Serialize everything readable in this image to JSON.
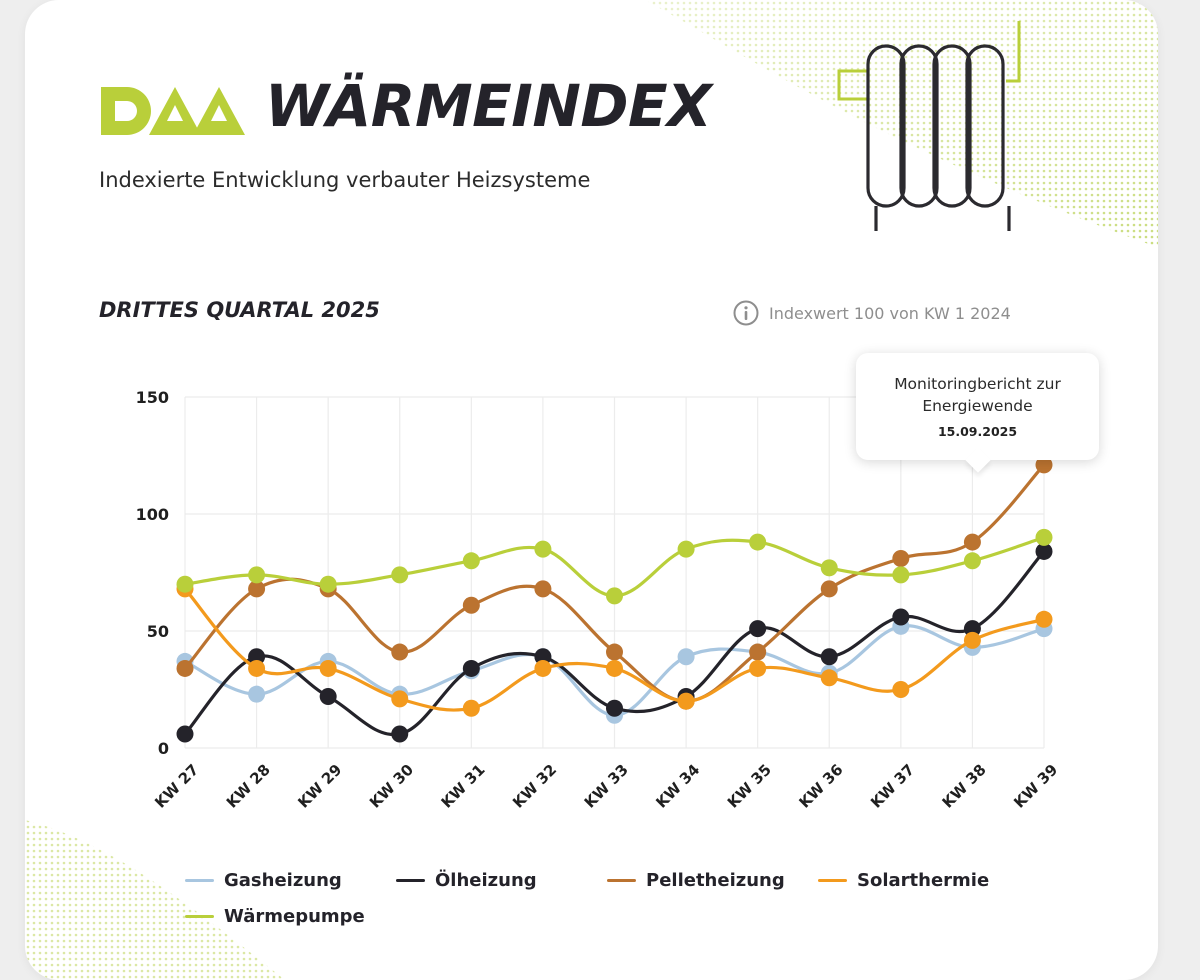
{
  "brand": {
    "title": "WÄRMEINDEX"
  },
  "subtitle": "Indexierte Entwicklung verbauter Heizsysteme",
  "section_title": "DRITTES QUARTAL 2025",
  "index_note": "Indexwert 100 von KW 1 2024",
  "annotation": {
    "line1": "Monitoringbericht zur",
    "line2": "Energiewende",
    "date": "15.09.2025",
    "category": "KW 38"
  },
  "colors": {
    "accent": "#b9cf3a",
    "text": "#24232a",
    "grid": "#ececec"
  },
  "icons": {
    "logo": "daa-logo",
    "radiator": "radiator-icon",
    "info": "info-icon"
  },
  "chart_data": {
    "type": "line",
    "smooth": true,
    "categories": [
      "KW 27",
      "KW 28",
      "KW 29",
      "KW 30",
      "KW 31",
      "KW 32",
      "KW 33",
      "KW 34",
      "KW 35",
      "KW 36",
      "KW 37",
      "KW 38",
      "KW 39"
    ],
    "ylim": [
      0,
      150
    ],
    "yticks": [
      0,
      50,
      100,
      150
    ],
    "grid": true,
    "legend_position": "bottom",
    "series": [
      {
        "name": "Gasheizung",
        "color": "#a8c6e0",
        "values": [
          37,
          23,
          37,
          23,
          33,
          39,
          14,
          39,
          41,
          32,
          52,
          43,
          51
        ]
      },
      {
        "name": "Ölheizung",
        "color": "#24232a",
        "values": [
          6,
          39,
          22,
          6,
          34,
          39,
          17,
          22,
          51,
          39,
          56,
          51,
          84
        ]
      },
      {
        "name": "Pelletheizung",
        "color": "#bb7330",
        "values": [
          34,
          68,
          68,
          41,
          61,
          68,
          41,
          20,
          41,
          68,
          81,
          88,
          121
        ]
      },
      {
        "name": "Solarthermie",
        "color": "#f39a1d",
        "values": [
          68,
          34,
          34,
          21,
          17,
          34,
          34,
          20,
          34,
          30,
          25,
          46,
          55
        ]
      },
      {
        "name": "Wärmepumpe",
        "color": "#b9cf3a",
        "values": [
          70,
          74,
          70,
          74,
          80,
          85,
          65,
          85,
          88,
          77,
          74,
          80,
          90
        ]
      }
    ]
  }
}
